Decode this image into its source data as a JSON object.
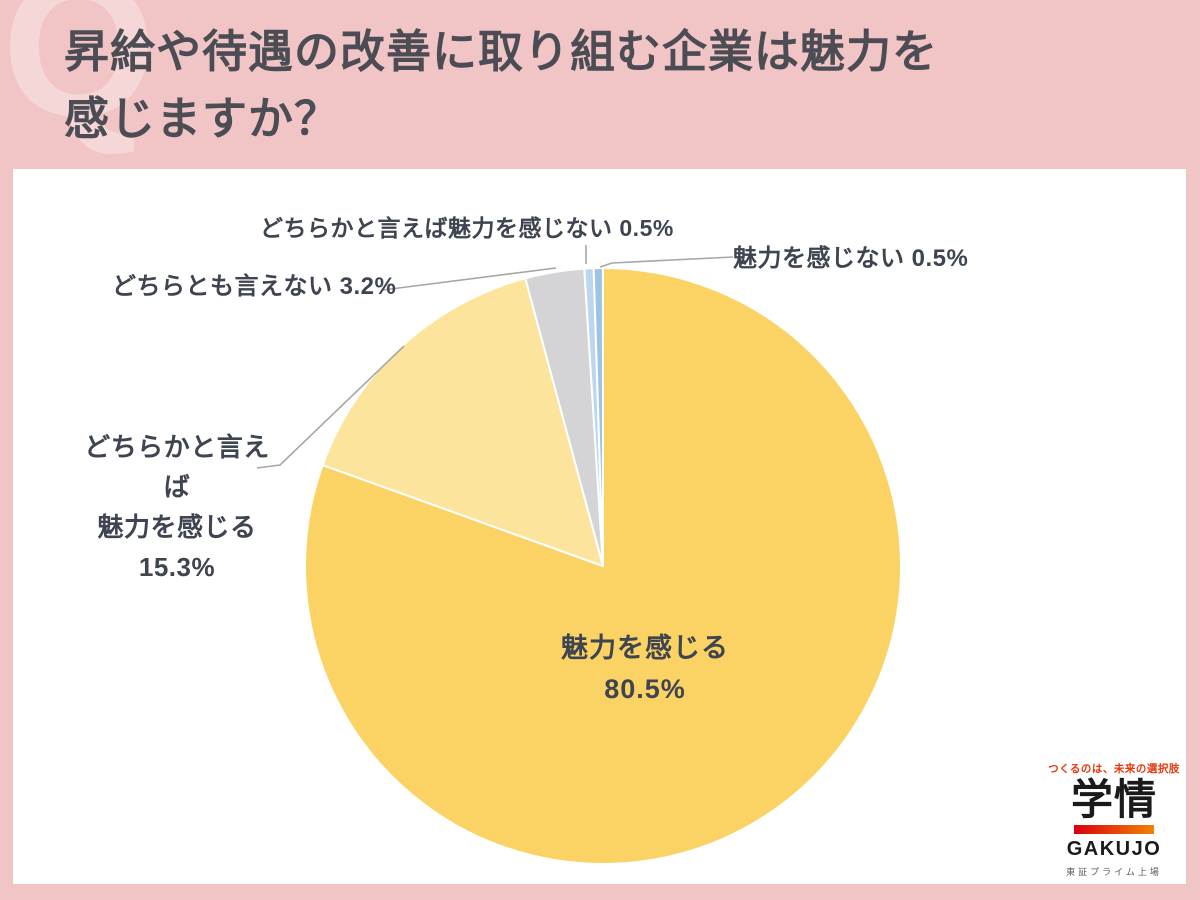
{
  "header": {
    "q_mark": "Q",
    "title_line1": "昇給や待遇の改善に取り組む企業は魅力を",
    "title_line2": "感じますか？"
  },
  "chart_data": {
    "type": "pie",
    "title": "昇給や待遇の改善に取り組む企業は魅力を感じますか？",
    "start_angle": "12-oclock",
    "direction": "clockwise",
    "legend": "none",
    "segments": [
      {
        "label": "魅力を感じる",
        "value": 80.5,
        "color": "#FBD364"
      },
      {
        "label": "どちらかと言えば魅力を感じる",
        "value": 15.3,
        "color": "#FCE49C"
      },
      {
        "label": "どちらとも言えない",
        "value": 3.2,
        "color": "#D4D4D6"
      },
      {
        "label": "どちらかと言えば魅力を感じない",
        "value": 0.5,
        "color": "#BCD6EE"
      },
      {
        "label": "魅力を感じない",
        "value": 0.5,
        "color": "#9FC3E5"
      }
    ],
    "inside_label_lines": [
      "魅力を感じる",
      "80.5%"
    ],
    "callouts": {
      "top": "どちらかと言えば魅力を感じない 0.5%",
      "right": "魅力を感じない 0.5%",
      "left_upper": "どちらとも言えない 3.2%",
      "left_lower_lines": [
        "どちらかと言えば",
        "魅力を感じる",
        "15.3%"
      ]
    }
  },
  "colors": {
    "background_pink": "#F1C5C5",
    "watermark_pink": "#F6D7D7",
    "panel_white": "#FFFFFF",
    "title_text": "#4C4C55",
    "label_text": "#3E4450",
    "leader_line": "#A6A6A6",
    "slice_stroke": "#FFFFFF"
  },
  "logo": {
    "tagline": "つくるのは、未来の選択肢",
    "kanji": "学情",
    "name": "GAKUJO",
    "listing": "東証プライム上場",
    "tagline_color": "#E8380D",
    "bar_gradient_start": "#D7000F",
    "bar_gradient_end": "#F08300"
  }
}
